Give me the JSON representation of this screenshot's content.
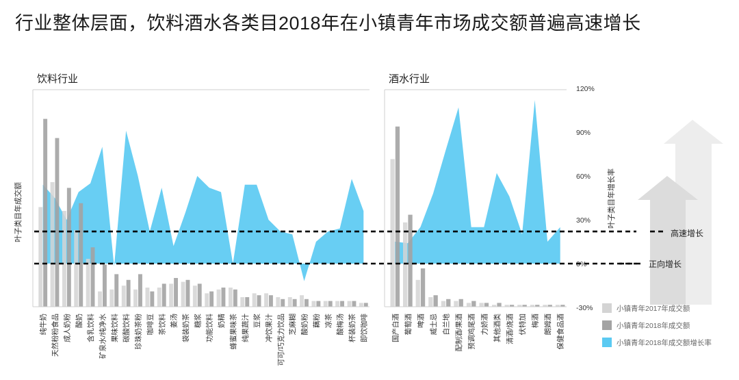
{
  "title": "行业整体层面，饮料酒水各类目2018年在小镇青年市场成交额普遍高速增长",
  "colors": {
    "s2017": "#d4d4d4",
    "s2018": "#a3a3a3",
    "growth": "#5bcaf2",
    "axis": "#cfcfcf"
  },
  "thresholds": {
    "high_label": "高速增长",
    "positive_label": "正向增长",
    "high_value": 22,
    "positive_value": 0
  },
  "arrow_icon": "up-arrow-icon",
  "chart_data": {
    "type": "bar",
    "y_left_label": "叶子类目年成交额",
    "y_right_label": "叶子类目年增长率",
    "y_right_ticks": [
      "120%",
      "90%",
      "60%",
      "30%",
      "0%",
      "-30%"
    ],
    "y_right_lim": [
      -30,
      120
    ],
    "legend": [
      "小镇青年2017年成交额",
      "小镇青年2018年成交额",
      "小镇青年2018年成交额增长率"
    ],
    "panels": [
      {
        "title": "饮料行业",
        "categories": [
          "纯牛奶",
          "天然粉粉食品",
          "成人奶粉",
          "酸奶",
          "含乳饮料",
          "矿泉水/纯净水",
          "果味饮料",
          "碳酸饮料",
          "珍珠奶茶粉",
          "咖啡豆",
          "茶饮料",
          "姜汤",
          "袋装奶茶",
          "糖浆",
          "功能饮料",
          "奶精",
          "蜂蜜果味茶",
          "纯果蔬汁",
          "豆浆",
          "冲饮果汁",
          "可可/巧克力饮品",
          "芝麻糊",
          "酸奶粉",
          "藕粉",
          "凉茶",
          "酸梅汤",
          "杯装奶茶",
          "即饮咖啡"
        ],
        "v2017": [
          52,
          65,
          50,
          40,
          25,
          8,
          9,
          11,
          9,
          10,
          10,
          12,
          13,
          11,
          7,
          9,
          10,
          5,
          7,
          7,
          5,
          5,
          6,
          3,
          3,
          3,
          3,
          2
        ],
        "v2018": [
          98,
          88,
          62,
          54,
          31,
          22,
          17,
          14,
          17,
          8,
          12,
          15,
          14,
          12,
          8,
          10,
          9,
          5,
          6,
          6,
          4,
          4,
          4,
          3,
          3,
          3,
          3,
          2
        ],
        "growth": [
          54,
          45,
          30,
          49,
          55,
          80,
          -2,
          91,
          60,
          22,
          52,
          12,
          35,
          60,
          52,
          49,
          0,
          54,
          54,
          30,
          22,
          20,
          -12,
          15,
          22,
          24,
          58,
          36
        ]
      },
      {
        "title": "酒水行业",
        "categories": [
          "国产白酒",
          "葡萄酒",
          "啤酒",
          "威士忌",
          "白兰地",
          "配制酒/果酒",
          "预调鸡尾酒",
          "力娇酒",
          "其他酒类",
          "清酒/烧酒",
          "伏特加",
          "梅酒",
          "朗姆酒",
          "保健食品酒"
        ],
        "v2017": [
          77,
          44,
          14,
          5,
          3,
          3,
          2,
          2,
          1,
          1,
          1,
          1,
          1,
          1
        ],
        "v2018": [
          94,
          48,
          20,
          6,
          4,
          4,
          3,
          2,
          2,
          1,
          1,
          1,
          1,
          1
        ],
        "growth": [
          15,
          14,
          25,
          48,
          78,
          107,
          25,
          25,
          62,
          46,
          20,
          112,
          15,
          25
        ]
      }
    ]
  }
}
